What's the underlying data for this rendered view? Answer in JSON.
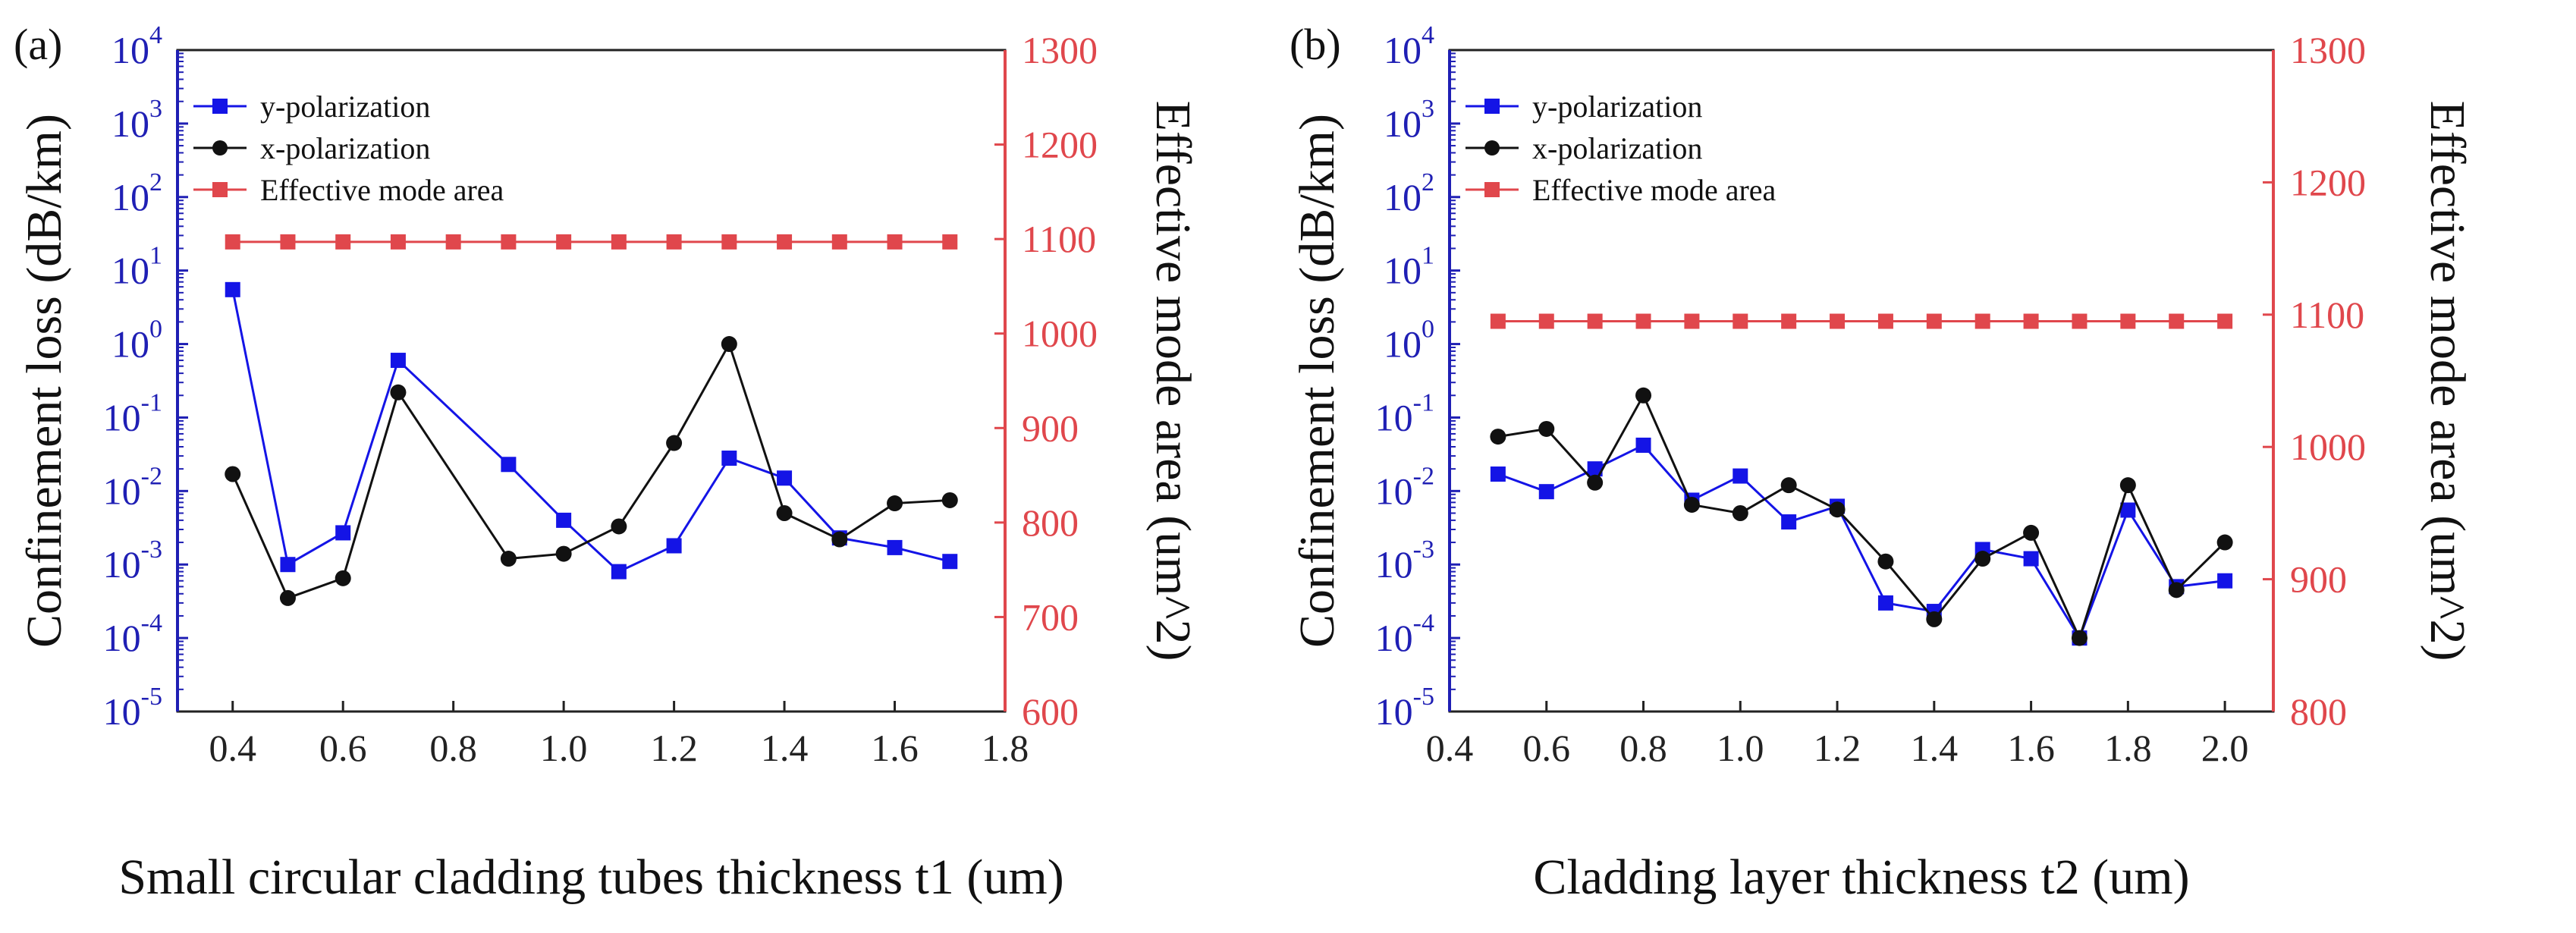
{
  "chart_data": [
    {
      "type": "line",
      "panel_label": "(a)",
      "xlabel": "Small circular cladding tubes thickness t1 (um)",
      "ylabel_left": "Confinement loss (dB/km)",
      "ylabel_right": "Effective mode area (um^2)",
      "xlim": [
        0.3,
        1.8
      ],
      "x_ticks": [
        "0.4",
        "0.6",
        "0.8",
        "1.0",
        "1.2",
        "1.4",
        "1.6",
        "1.8"
      ],
      "ylim_left_log10": [
        -5,
        4
      ],
      "y_left_ticks": [
        {
          "base": "10",
          "exp": "4"
        },
        {
          "base": "10",
          "exp": "3"
        },
        {
          "base": "10",
          "exp": "2"
        },
        {
          "base": "10",
          "exp": "1"
        },
        {
          "base": "10",
          "exp": "0"
        },
        {
          "base": "10",
          "exp": "-1"
        },
        {
          "base": "10",
          "exp": "-2"
        },
        {
          "base": "10",
          "exp": "-3"
        },
        {
          "base": "10",
          "exp": "-4"
        },
        {
          "base": "10",
          "exp": "-5"
        }
      ],
      "ylim_right": [
        600,
        1300
      ],
      "y_right_ticks": [
        "1300",
        "1200",
        "1100",
        "1000",
        "900",
        "800",
        "700",
        "600"
      ],
      "legend": [
        "y-polarization",
        "x-polarization",
        "Effective mode area"
      ],
      "series": [
        {
          "name": "y-polarization",
          "axis": "left",
          "color": "#1414e6",
          "marker": "square",
          "x": [
            0.4,
            0.5,
            0.6,
            0.7,
            0.9,
            1.0,
            1.1,
            1.2,
            1.3,
            1.4,
            1.5,
            1.6,
            1.7
          ],
          "y": [
            5.5,
            0.001,
            0.0027,
            0.6,
            0.023,
            0.004,
            0.0008,
            0.0018,
            0.028,
            0.015,
            0.0023,
            0.0017,
            0.0011
          ]
        },
        {
          "name": "x-polarization",
          "axis": "left",
          "color": "#111111",
          "marker": "circle",
          "x": [
            0.4,
            0.5,
            0.6,
            0.7,
            0.9,
            1.0,
            1.1,
            1.2,
            1.3,
            1.4,
            1.5,
            1.6,
            1.7
          ],
          "y": [
            0.017,
            0.00035,
            0.00065,
            0.22,
            0.0012,
            0.0014,
            0.0033,
            0.045,
            1.0,
            0.005,
            0.0022,
            0.0068,
            0.0075
          ]
        },
        {
          "name": "Effective mode area",
          "axis": "right",
          "color": "#e0474c",
          "marker": "square",
          "x": [
            0.4,
            0.5,
            0.6,
            0.7,
            0.8,
            0.9,
            1.0,
            1.1,
            1.2,
            1.3,
            1.4,
            1.5,
            1.6,
            1.7
          ],
          "y": [
            1097,
            1097,
            1097,
            1097,
            1097,
            1097,
            1097,
            1097,
            1097,
            1097,
            1097,
            1097,
            1097,
            1097
          ]
        }
      ]
    },
    {
      "type": "line",
      "panel_label": "(b)",
      "xlabel": "Cladding layer thickness t2 (um)",
      "ylabel_left": "Confinement loss (dB/km)",
      "ylabel_right": "Effective mode area (um^2)",
      "xlim": [
        0.4,
        2.1
      ],
      "x_ticks": [
        "0.4",
        "0.6",
        "0.8",
        "1.0",
        "1.2",
        "1.4",
        "1.6",
        "1.8",
        "2.0"
      ],
      "ylim_left_log10": [
        -5,
        4
      ],
      "y_left_ticks": [
        {
          "base": "10",
          "exp": "4"
        },
        {
          "base": "10",
          "exp": "3"
        },
        {
          "base": "10",
          "exp": "2"
        },
        {
          "base": "10",
          "exp": "1"
        },
        {
          "base": "10",
          "exp": "0"
        },
        {
          "base": "10",
          "exp": "-1"
        },
        {
          "base": "10",
          "exp": "-2"
        },
        {
          "base": "10",
          "exp": "-3"
        },
        {
          "base": "10",
          "exp": "-4"
        },
        {
          "base": "10",
          "exp": "-5"
        }
      ],
      "y_left_ticks_plain": [
        "1.0"
      ],
      "ylim_right": [
        800,
        1300
      ],
      "y_right_ticks": [
        "1300",
        "1200",
        "1100",
        "1000",
        "900",
        "800"
      ],
      "legend": [
        "y-polarization",
        "x-polarization",
        "Effective mode area"
      ],
      "series": [
        {
          "name": "y-polarization",
          "axis": "left",
          "color": "#1414e6",
          "marker": "square",
          "x": [
            0.5,
            0.6,
            0.7,
            0.8,
            0.9,
            1.0,
            1.1,
            1.2,
            1.3,
            1.4,
            1.5,
            1.6,
            1.7,
            1.8,
            1.9,
            2.0
          ],
          "y": [
            0.017,
            0.0098,
            0.02,
            0.042,
            0.0075,
            0.016,
            0.0038,
            0.0062,
            0.0003,
            0.00023,
            0.0016,
            0.0012,
            0.0001,
            0.0055,
            0.0005,
            0.0006
          ]
        },
        {
          "name": "x-polarization",
          "axis": "left",
          "color": "#111111",
          "marker": "circle",
          "x": [
            0.5,
            0.6,
            0.7,
            0.8,
            0.9,
            1.0,
            1.1,
            1.2,
            1.3,
            1.4,
            1.5,
            1.6,
            1.7,
            1.8,
            1.9,
            2.0
          ],
          "y": [
            0.055,
            0.07,
            0.013,
            0.2,
            0.0065,
            0.005,
            0.012,
            0.0056,
            0.0011,
            0.00018,
            0.0012,
            0.0027,
            0.0001,
            0.012,
            0.00045,
            0.002
          ]
        },
        {
          "name": "Effective mode area",
          "axis": "right",
          "color": "#e0474c",
          "marker": "square",
          "x": [
            0.5,
            0.6,
            0.7,
            0.8,
            0.9,
            1.0,
            1.1,
            1.2,
            1.3,
            1.4,
            1.5,
            1.6,
            1.7,
            1.8,
            1.9,
            2.0
          ],
          "y": [
            1095,
            1095,
            1095,
            1095,
            1095,
            1095,
            1095,
            1095,
            1095,
            1095,
            1095,
            1095,
            1095,
            1095,
            1095,
            1095
          ]
        }
      ]
    }
  ]
}
